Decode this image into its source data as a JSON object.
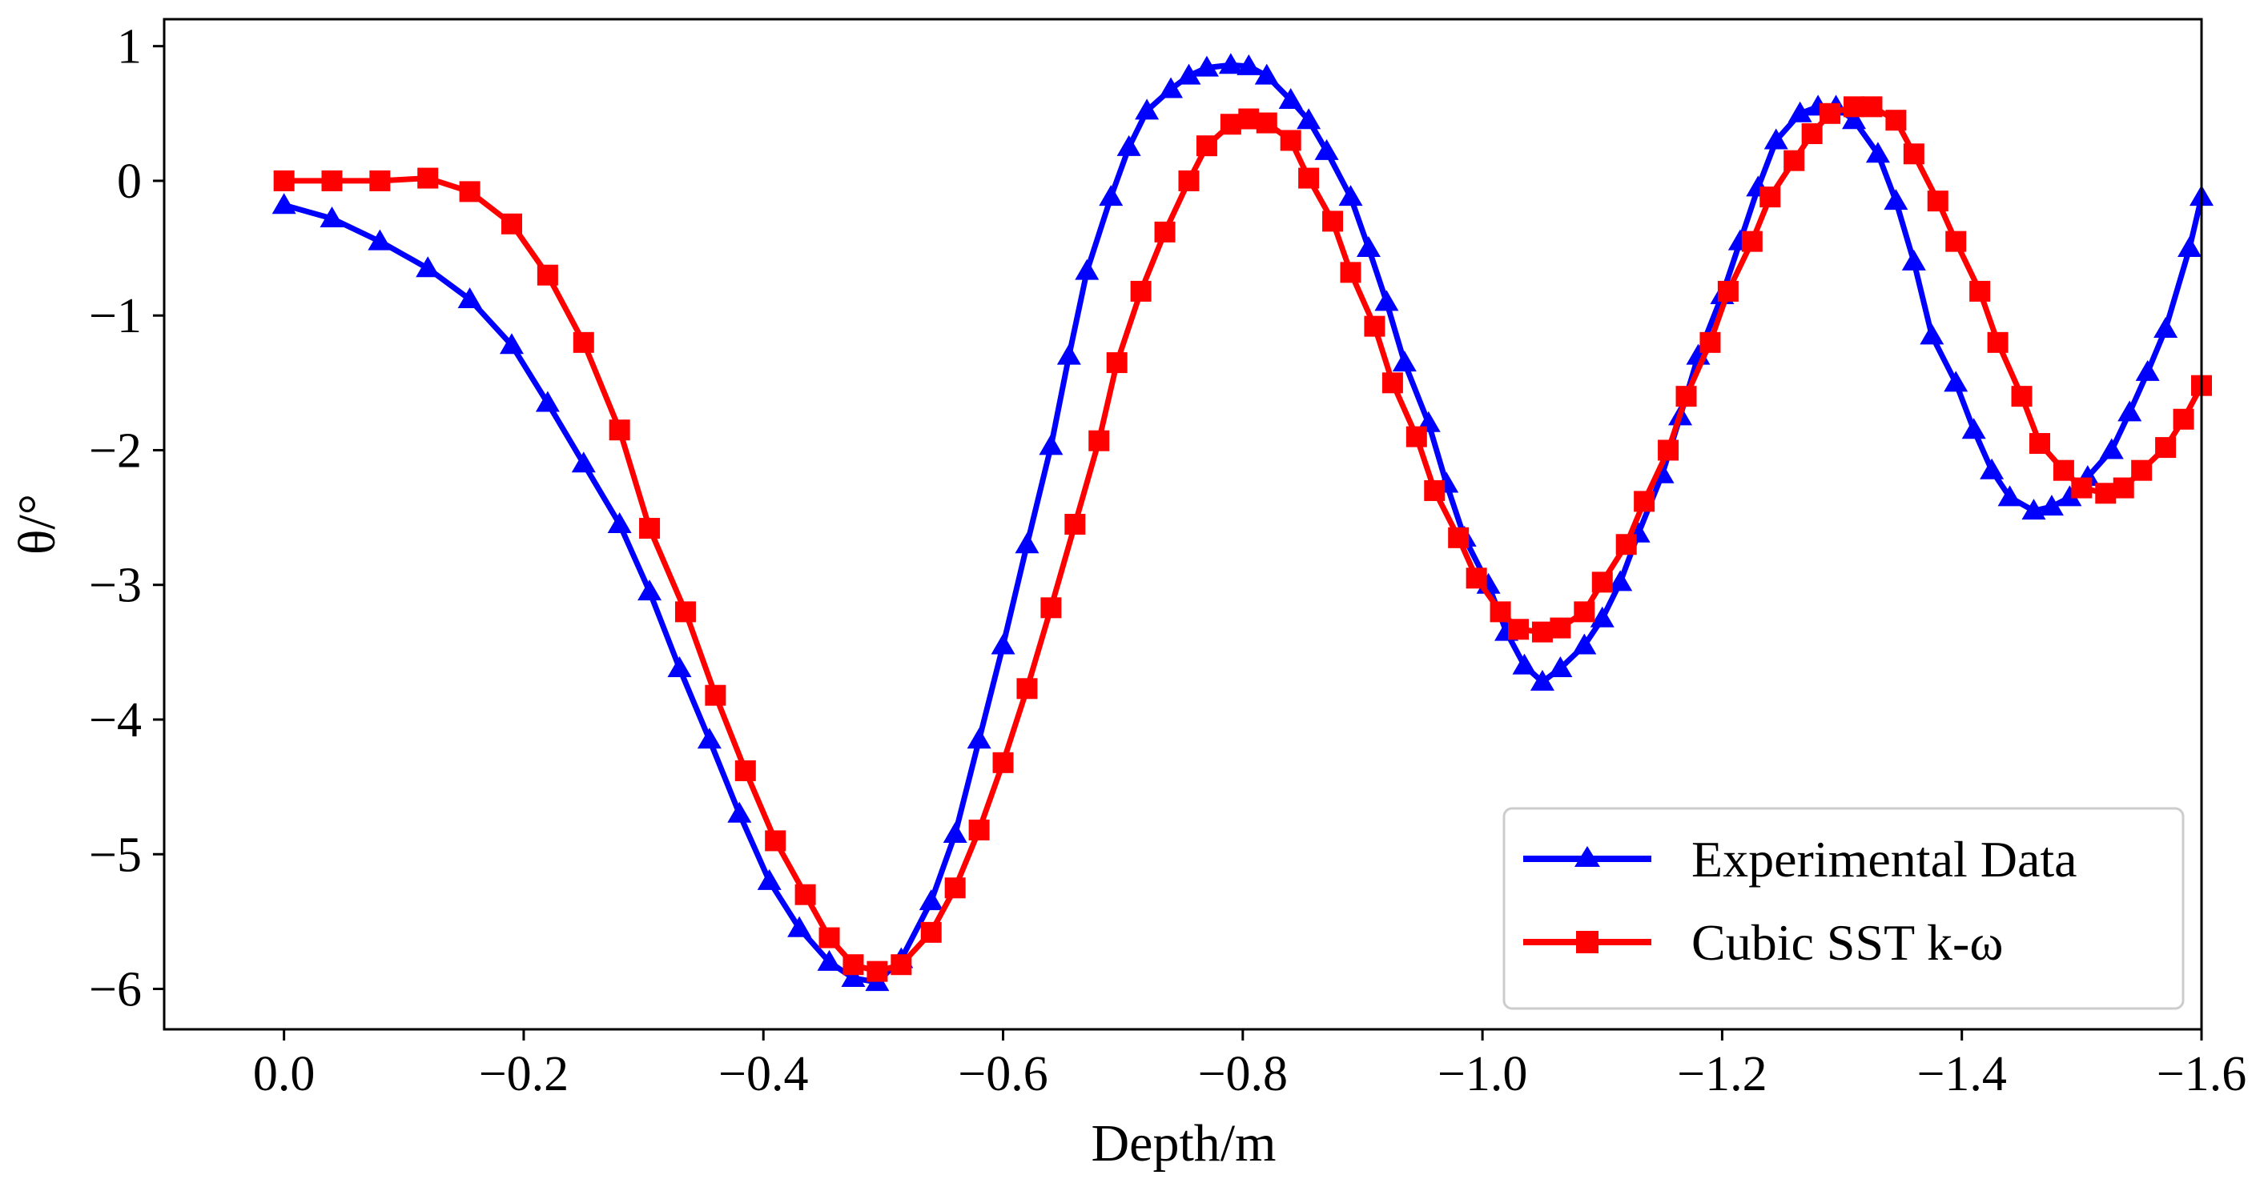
{
  "chart_data": {
    "type": "line",
    "xlabel": "Depth/m",
    "ylabel": "θ/°",
    "xlim": [
      0.1,
      -1.6
    ],
    "ylim": [
      -6.3,
      1.2
    ],
    "x_ticks": [
      0.0,
      -0.2,
      -0.4,
      -0.6,
      -0.8,
      -1.0,
      -1.2,
      -1.4,
      -1.6
    ],
    "x_tick_labels": [
      "0.0",
      "−0.2",
      "−0.4",
      "−0.6",
      "−0.8",
      "−1.0",
      "−1.2",
      "−1.4",
      "−1.6"
    ],
    "y_ticks": [
      1,
      0,
      -1,
      -2,
      -3,
      -4,
      -5,
      -6
    ],
    "y_tick_labels": [
      "1",
      "0",
      "−1",
      "−2",
      "−3",
      "−4",
      "−5",
      "−6"
    ],
    "legend_position": "lower-right",
    "series": [
      {
        "name": "Experimental Data",
        "color": "#0000ff",
        "marker": "triangle",
        "x": [
          0.0,
          -0.04,
          -0.08,
          -0.12,
          -0.155,
          -0.19,
          -0.22,
          -0.25,
          -0.28,
          -0.305,
          -0.33,
          -0.355,
          -0.38,
          -0.405,
          -0.43,
          -0.455,
          -0.475,
          -0.495,
          -0.515,
          -0.54,
          -0.56,
          -0.58,
          -0.6,
          -0.62,
          -0.64,
          -0.655,
          -0.67,
          -0.69,
          -0.705,
          -0.72,
          -0.74,
          -0.755,
          -0.77,
          -0.79,
          -0.805,
          -0.82,
          -0.84,
          -0.855,
          -0.87,
          -0.89,
          -0.905,
          -0.92,
          -0.935,
          -0.955,
          -0.97,
          -0.985,
          -1.005,
          -1.02,
          -1.035,
          -1.05,
          -1.065,
          -1.085,
          -1.1,
          -1.115,
          -1.13,
          -1.15,
          -1.165,
          -1.18,
          -1.2,
          -1.215,
          -1.23,
          -1.245,
          -1.265,
          -1.28,
          -1.295,
          -1.31,
          -1.33,
          -1.345,
          -1.36,
          -1.375,
          -1.395,
          -1.41,
          -1.425,
          -1.44,
          -1.46,
          -1.475,
          -1.49,
          -1.505,
          -1.525,
          -1.54,
          -1.555,
          -1.57,
          -1.59,
          -1.6
        ],
        "y": [
          -0.18,
          -0.28,
          -0.45,
          -0.65,
          -0.88,
          -1.22,
          -1.65,
          -2.1,
          -2.55,
          -3.05,
          -3.62,
          -4.15,
          -4.7,
          -5.2,
          -5.55,
          -5.8,
          -5.92,
          -5.95,
          -5.78,
          -5.35,
          -4.85,
          -4.15,
          -3.45,
          -2.7,
          -1.97,
          -1.3,
          -0.67,
          -0.12,
          0.25,
          0.52,
          0.68,
          0.78,
          0.84,
          0.86,
          0.85,
          0.78,
          0.6,
          0.45,
          0.22,
          -0.12,
          -0.5,
          -0.9,
          -1.35,
          -1.8,
          -2.25,
          -2.65,
          -3.0,
          -3.35,
          -3.6,
          -3.72,
          -3.62,
          -3.45,
          -3.25,
          -2.98,
          -2.62,
          -2.18,
          -1.75,
          -1.3,
          -0.85,
          -0.45,
          -0.05,
          0.3,
          0.5,
          0.55,
          0.55,
          0.45,
          0.2,
          -0.15,
          -0.6,
          -1.15,
          -1.5,
          -1.85,
          -2.15,
          -2.35,
          -2.45,
          -2.42,
          -2.35,
          -2.2,
          -2.0,
          -1.72,
          -1.42,
          -1.1,
          -0.5,
          -0.12
        ]
      },
      {
        "name": "Cubic SST k-ω",
        "color": "#ff0000",
        "marker": "square",
        "x": [
          0.0,
          -0.04,
          -0.08,
          -0.12,
          -0.155,
          -0.19,
          -0.22,
          -0.25,
          -0.28,
          -0.305,
          -0.335,
          -0.36,
          -0.385,
          -0.41,
          -0.435,
          -0.455,
          -0.475,
          -0.495,
          -0.515,
          -0.54,
          -0.56,
          -0.58,
          -0.6,
          -0.62,
          -0.64,
          -0.66,
          -0.68,
          -0.695,
          -0.715,
          -0.735,
          -0.755,
          -0.77,
          -0.79,
          -0.805,
          -0.82,
          -0.84,
          -0.855,
          -0.875,
          -0.89,
          -0.91,
          -0.925,
          -0.945,
          -0.96,
          -0.98,
          -0.995,
          -1.015,
          -1.03,
          -1.05,
          -1.065,
          -1.085,
          -1.1,
          -1.12,
          -1.135,
          -1.155,
          -1.17,
          -1.19,
          -1.205,
          -1.225,
          -1.24,
          -1.26,
          -1.275,
          -1.29,
          -1.31,
          -1.325,
          -1.345,
          -1.36,
          -1.38,
          -1.395,
          -1.415,
          -1.43,
          -1.45,
          -1.465,
          -1.485,
          -1.5,
          -1.52,
          -1.535,
          -1.55,
          -1.57,
          -1.585,
          -1.6
        ],
        "y": [
          0.0,
          0.0,
          0.0,
          0.02,
          -0.08,
          -0.32,
          -0.7,
          -1.2,
          -1.85,
          -2.58,
          -3.2,
          -3.82,
          -4.38,
          -4.9,
          -5.3,
          -5.62,
          -5.82,
          -5.87,
          -5.82,
          -5.58,
          -5.25,
          -4.82,
          -4.32,
          -3.77,
          -3.17,
          -2.55,
          -1.93,
          -1.35,
          -0.82,
          -0.38,
          0.0,
          0.26,
          0.42,
          0.46,
          0.43,
          0.3,
          0.02,
          -0.3,
          -0.68,
          -1.08,
          -1.5,
          -1.9,
          -2.3,
          -2.65,
          -2.95,
          -3.2,
          -3.33,
          -3.35,
          -3.32,
          -3.2,
          -2.98,
          -2.7,
          -2.38,
          -2.0,
          -1.6,
          -1.2,
          -0.82,
          -0.45,
          -0.12,
          0.15,
          0.35,
          0.5,
          0.55,
          0.55,
          0.45,
          0.2,
          -0.15,
          -0.45,
          -0.82,
          -1.2,
          -1.6,
          -1.95,
          -2.15,
          -2.28,
          -2.32,
          -2.28,
          -2.15,
          -1.98,
          -1.77,
          -1.52
        ]
      }
    ]
  }
}
